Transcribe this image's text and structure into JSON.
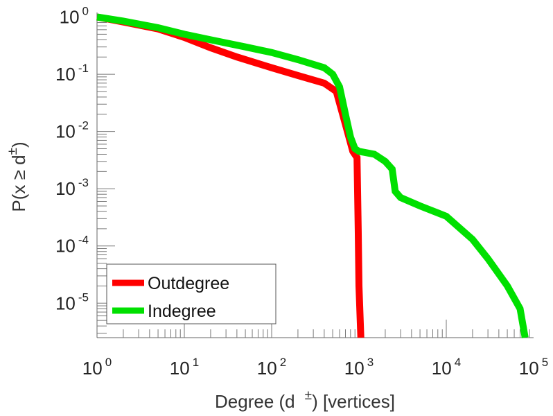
{
  "chart_data": {
    "type": "line",
    "xscale": "log",
    "yscale": "log",
    "xlim": [
      1,
      100000
    ],
    "ylim": [
      2.5e-06,
      1.2
    ],
    "xlabel": {
      "pre": "Degree (d",
      "sup": "±",
      "post": ") [vertices]"
    },
    "ylabel": {
      "pre": "P(x ≥ d",
      "sup": "±",
      "post": ")"
    },
    "x_ticks": [
      {
        "value": 1,
        "base": "10",
        "exp": "0"
      },
      {
        "value": 10,
        "base": "10",
        "exp": "1"
      },
      {
        "value": 100,
        "base": "10",
        "exp": "2"
      },
      {
        "value": 1000,
        "base": "10",
        "exp": "3"
      },
      {
        "value": 10000,
        "base": "10",
        "exp": "4"
      },
      {
        "value": 100000,
        "base": "10",
        "exp": "5"
      }
    ],
    "y_ticks": [
      {
        "value": 1,
        "base": "10",
        "exp": "0"
      },
      {
        "value": 0.1,
        "base": "10",
        "exp": "-1"
      },
      {
        "value": 0.01,
        "base": "10",
        "exp": "-2"
      },
      {
        "value": 0.001,
        "base": "10",
        "exp": "-3"
      },
      {
        "value": 0.0001,
        "base": "10",
        "exp": "-4"
      },
      {
        "value": 1e-05,
        "base": "10",
        "exp": "-5"
      }
    ],
    "legend": {
      "position": "bottom-left"
    },
    "series": [
      {
        "name": "Outdegree",
        "color": "#ff0000",
        "points": [
          [
            1,
            1.0
          ],
          [
            2,
            0.82
          ],
          [
            5,
            0.62
          ],
          [
            10,
            0.44
          ],
          [
            20,
            0.29
          ],
          [
            40,
            0.2
          ],
          [
            100,
            0.13
          ],
          [
            200,
            0.095
          ],
          [
            400,
            0.07
          ],
          [
            550,
            0.05
          ],
          [
            650,
            0.02
          ],
          [
            750,
            0.009
          ],
          [
            850,
            0.0045
          ],
          [
            950,
            0.0035
          ],
          [
            980,
            0.0002
          ],
          [
            1000,
            2e-05
          ],
          [
            1050,
            2.5e-06
          ]
        ]
      },
      {
        "name": "Indegree",
        "color": "#00e000",
        "points": [
          [
            1,
            1.0
          ],
          [
            2,
            0.85
          ],
          [
            5,
            0.65
          ],
          [
            10,
            0.5
          ],
          [
            20,
            0.4
          ],
          [
            50,
            0.3
          ],
          [
            100,
            0.24
          ],
          [
            200,
            0.18
          ],
          [
            400,
            0.13
          ],
          [
            500,
            0.1
          ],
          [
            600,
            0.06
          ],
          [
            700,
            0.02
          ],
          [
            800,
            0.008
          ],
          [
            900,
            0.005
          ],
          [
            1000,
            0.0045
          ],
          [
            1500,
            0.004
          ],
          [
            2000,
            0.003
          ],
          [
            2400,
            0.0022
          ],
          [
            2600,
            0.0009
          ],
          [
            3000,
            0.0007
          ],
          [
            5000,
            0.0005
          ],
          [
            10000,
            0.00033
          ],
          [
            20000,
            0.00013
          ],
          [
            30000,
            6e-05
          ],
          [
            50000,
            2e-05
          ],
          [
            70000,
            8e-06
          ],
          [
            80000,
            2.5e-06
          ]
        ]
      }
    ]
  }
}
